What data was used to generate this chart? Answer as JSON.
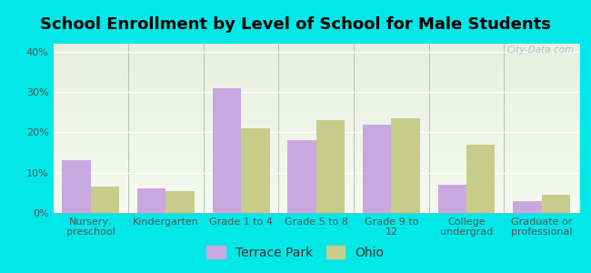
{
  "title": "School Enrollment by Level of School for Male Students",
  "categories": [
    "Nursery,\npreschool",
    "Kindergarten",
    "Grade 1 to 4",
    "Grade 5 to 8",
    "Grade 9 to\n12",
    "College\nundergrad",
    "Graduate or\nprofessional"
  ],
  "terrace_park": [
    13,
    6,
    31,
    18,
    22,
    7,
    3
  ],
  "ohio": [
    6.5,
    5.5,
    21,
    23,
    23.5,
    17,
    4.5
  ],
  "bar_color_tp": "#c9a8e0",
  "bar_color_oh": "#c8cc8a",
  "background_outer": "#00e8e8",
  "background_inner_top": "#e8efe0",
  "background_inner_bottom": "#f5faf0",
  "yticks": [
    0,
    10,
    20,
    30,
    40
  ],
  "ylim": [
    0,
    42
  ],
  "legend_tp": "Terrace Park",
  "legend_oh": "Ohio",
  "watermark": "City-Data.com",
  "bar_width": 0.38,
  "title_fontsize": 13,
  "tick_fontsize": 8,
  "legend_fontsize": 10
}
